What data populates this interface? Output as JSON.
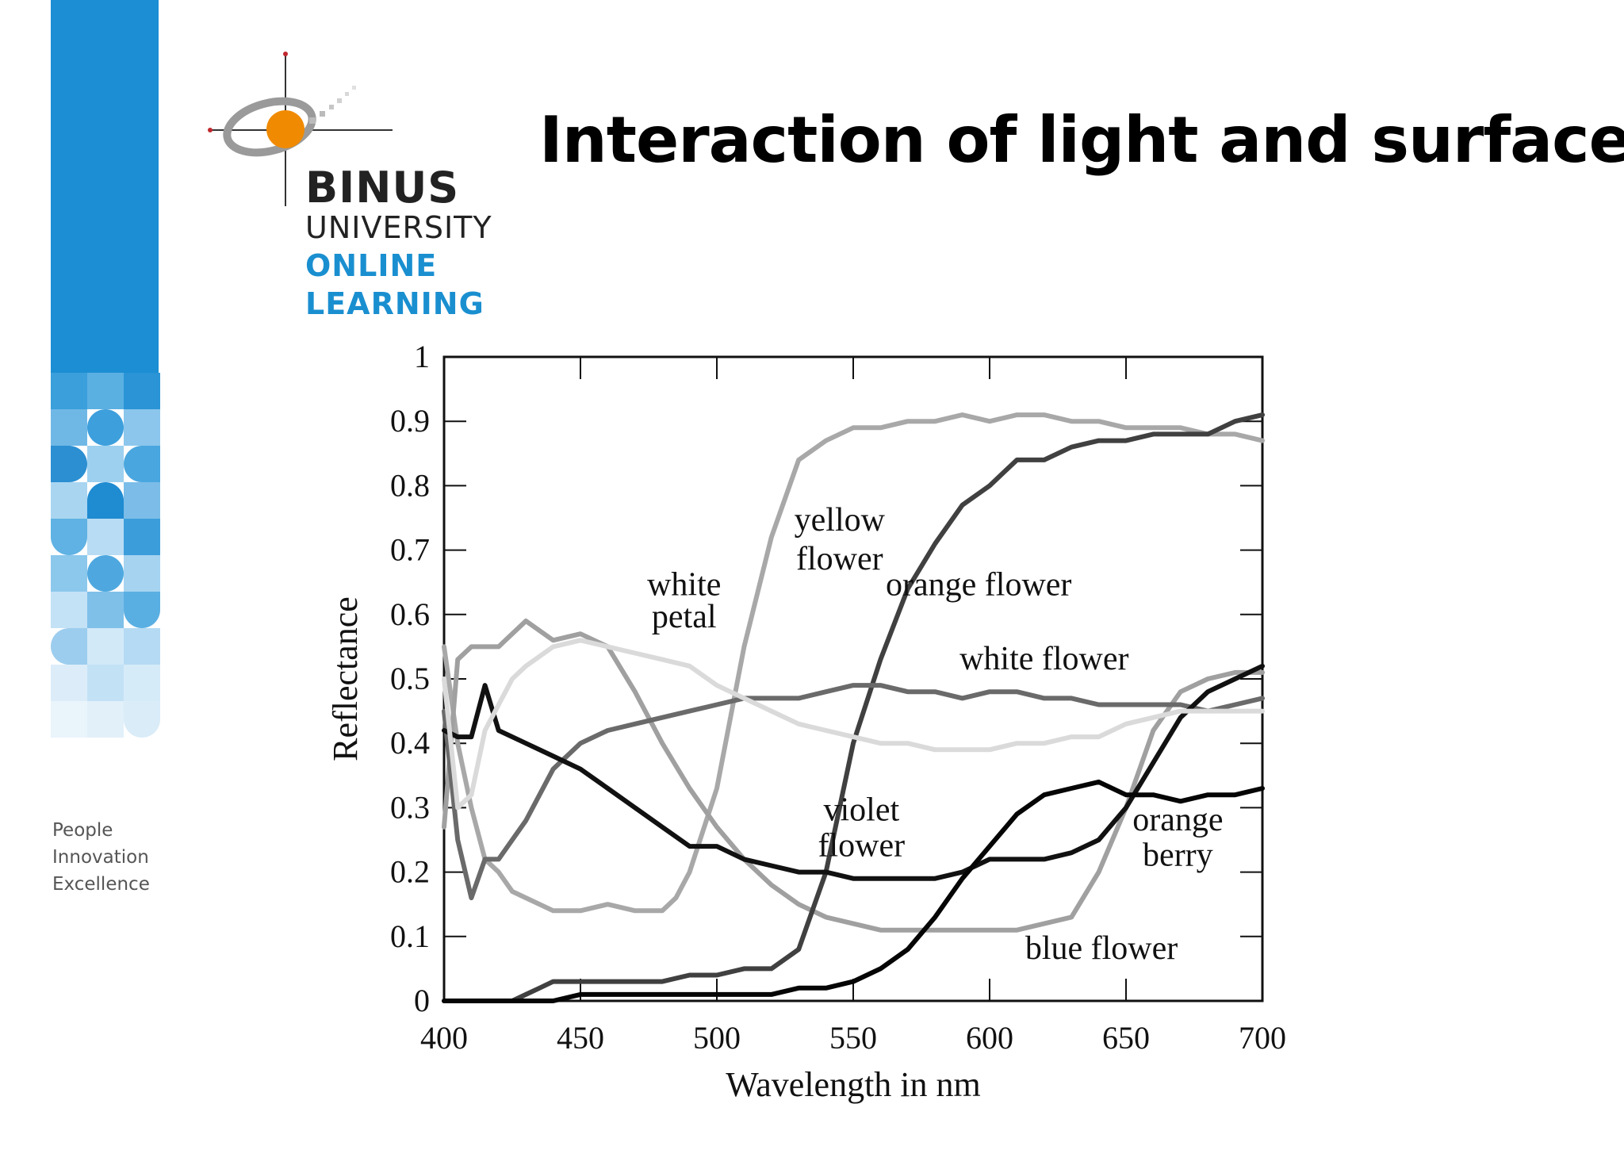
{
  "slide": {
    "title": "Interaction of light and surfaces",
    "tagline": [
      "People",
      "Innovation",
      "Excellence"
    ],
    "sidebar_color": "#1c8ed3"
  },
  "logo": {
    "line1": "BINUS",
    "line2": "UNIVERSITY",
    "line3": "ONLINE",
    "line4": "LEARNING",
    "accent_color": "#f08a00",
    "text_blue": "#1a8fd0"
  },
  "chart_data": {
    "type": "line",
    "title": "",
    "xlabel": "Wavelength in nm",
    "ylabel": "Reflectance",
    "xlim": [
      400,
      700
    ],
    "ylim": [
      0,
      1
    ],
    "xticks": [
      400,
      450,
      500,
      550,
      600,
      650,
      700
    ],
    "yticks": [
      0,
      0.1,
      0.2,
      0.3,
      0.4,
      0.5,
      0.6,
      0.7,
      0.8,
      0.9,
      1
    ],
    "ytick_labels": [
      "0",
      "0.1",
      "0.2",
      "0.3",
      "0.4",
      "0.5",
      "0.6",
      "0.7",
      "0.8",
      "0.9",
      "1"
    ],
    "grid": false,
    "series": [
      {
        "name": "yellow flower",
        "color": "#a8a8a8",
        "x": [
          400,
          405,
          410,
          415,
          420,
          425,
          430,
          440,
          450,
          460,
          470,
          480,
          485,
          490,
          500,
          510,
          520,
          530,
          540,
          550,
          560,
          570,
          580,
          590,
          600,
          610,
          620,
          630,
          640,
          650,
          660,
          670,
          680,
          690,
          700
        ],
        "y": [
          0.55,
          0.4,
          0.3,
          0.22,
          0.2,
          0.17,
          0.16,
          0.14,
          0.14,
          0.15,
          0.14,
          0.14,
          0.16,
          0.2,
          0.33,
          0.55,
          0.72,
          0.84,
          0.87,
          0.89,
          0.89,
          0.9,
          0.9,
          0.91,
          0.9,
          0.91,
          0.91,
          0.9,
          0.9,
          0.89,
          0.89,
          0.89,
          0.88,
          0.88,
          0.87
        ]
      },
      {
        "name": "white petal",
        "color": "#a0a0a0",
        "x": [
          400,
          405,
          410,
          420,
          430,
          440,
          450,
          460,
          470,
          480,
          490,
          500,
          510,
          520,
          530,
          540,
          550,
          560,
          570,
          580,
          590,
          600,
          610,
          620,
          630,
          640,
          650,
          660,
          670,
          680,
          690,
          700
        ],
        "y": [
          0.27,
          0.53,
          0.55,
          0.55,
          0.59,
          0.56,
          0.57,
          0.55,
          0.48,
          0.4,
          0.33,
          0.27,
          0.22,
          0.18,
          0.15,
          0.13,
          0.12,
          0.11,
          0.11,
          0.11,
          0.11,
          0.11,
          0.11,
          0.12,
          0.13,
          0.2,
          0.3,
          0.42,
          0.48,
          0.5,
          0.51,
          0.51
        ]
      },
      {
        "name": "orange flower",
        "color": "#404040",
        "x": [
          400,
          410,
          420,
          425,
          430,
          435,
          440,
          450,
          460,
          470,
          480,
          490,
          500,
          510,
          520,
          530,
          540,
          550,
          560,
          570,
          580,
          590,
          600,
          610,
          620,
          630,
          640,
          650,
          660,
          670,
          680,
          690,
          700
        ],
        "y": [
          0,
          0,
          0,
          0,
          0.01,
          0.02,
          0.03,
          0.03,
          0.03,
          0.03,
          0.03,
          0.04,
          0.04,
          0.05,
          0.05,
          0.08,
          0.2,
          0.4,
          0.53,
          0.64,
          0.71,
          0.77,
          0.8,
          0.84,
          0.84,
          0.86,
          0.87,
          0.87,
          0.88,
          0.88,
          0.88,
          0.9,
          0.91
        ]
      },
      {
        "name": "white flower",
        "color": "#6a6a6a",
        "x": [
          400,
          405,
          410,
          415,
          420,
          430,
          440,
          450,
          460,
          470,
          480,
          490,
          500,
          510,
          520,
          530,
          540,
          550,
          560,
          570,
          580,
          590,
          600,
          610,
          620,
          630,
          640,
          650,
          660,
          670,
          680,
          690,
          700
        ],
        "y": [
          0.45,
          0.25,
          0.16,
          0.22,
          0.22,
          0.28,
          0.36,
          0.4,
          0.42,
          0.43,
          0.44,
          0.45,
          0.46,
          0.47,
          0.47,
          0.47,
          0.48,
          0.49,
          0.49,
          0.48,
          0.48,
          0.47,
          0.48,
          0.48,
          0.47,
          0.47,
          0.46,
          0.46,
          0.46,
          0.46,
          0.45,
          0.46,
          0.47
        ]
      },
      {
        "name": "violet flower",
        "color": "#111111",
        "x": [
          400,
          405,
          410,
          415,
          420,
          430,
          440,
          450,
          460,
          470,
          480,
          490,
          500,
          510,
          520,
          530,
          540,
          550,
          560,
          570,
          580,
          590,
          600,
          610,
          620,
          630,
          640,
          650,
          660,
          670,
          680,
          690,
          700
        ],
        "y": [
          0.42,
          0.41,
          0.41,
          0.49,
          0.42,
          0.4,
          0.38,
          0.36,
          0.33,
          0.3,
          0.27,
          0.24,
          0.24,
          0.22,
          0.21,
          0.2,
          0.2,
          0.19,
          0.19,
          0.19,
          0.19,
          0.2,
          0.22,
          0.22,
          0.22,
          0.23,
          0.25,
          0.3,
          0.37,
          0.44,
          0.48,
          0.5,
          0.52
        ]
      },
      {
        "name": "blue flower",
        "color": "#dadada",
        "x": [
          400,
          405,
          410,
          415,
          420,
          425,
          430,
          440,
          450,
          460,
          470,
          480,
          490,
          500,
          510,
          520,
          530,
          540,
          550,
          560,
          570,
          580,
          590,
          600,
          610,
          620,
          630,
          640,
          650,
          660,
          670,
          680,
          690,
          700
        ],
        "y": [
          0.5,
          0.3,
          0.32,
          0.42,
          0.46,
          0.5,
          0.52,
          0.55,
          0.56,
          0.55,
          0.54,
          0.53,
          0.52,
          0.49,
          0.47,
          0.45,
          0.43,
          0.42,
          0.41,
          0.4,
          0.4,
          0.39,
          0.39,
          0.39,
          0.4,
          0.4,
          0.41,
          0.41,
          0.43,
          0.44,
          0.45,
          0.45,
          0.45,
          0.45
        ]
      },
      {
        "name": "orange berry",
        "color": "#050505",
        "x": [
          400,
          420,
          430,
          440,
          450,
          460,
          470,
          480,
          490,
          500,
          510,
          520,
          530,
          540,
          550,
          560,
          570,
          580,
          590,
          600,
          610,
          620,
          630,
          640,
          650,
          660,
          670,
          680,
          690,
          700
        ],
        "y": [
          0,
          0,
          0,
          0,
          0.01,
          0.01,
          0.01,
          0.01,
          0.01,
          0.01,
          0.01,
          0.01,
          0.02,
          0.02,
          0.03,
          0.05,
          0.08,
          0.13,
          0.19,
          0.24,
          0.29,
          0.32,
          0.33,
          0.34,
          0.32,
          0.32,
          0.31,
          0.32,
          0.32,
          0.33
        ]
      }
    ],
    "annotations": [
      {
        "text": [
          "yellow",
          "flower"
        ],
        "x": 545,
        "y": [
          0.73,
          0.67
        ]
      },
      {
        "text": [
          "white",
          "petal"
        ],
        "x": 488,
        "y": [
          0.63,
          0.58
        ]
      },
      {
        "text": [
          "orange flower"
        ],
        "x": 596,
        "y": [
          0.63
        ]
      },
      {
        "text": [
          "white flower"
        ],
        "x": 620,
        "y": [
          0.515
        ]
      },
      {
        "text": [
          "violet",
          "flower"
        ],
        "x": 553,
        "y": [
          0.28,
          0.225
        ]
      },
      {
        "text": [
          "orange",
          "berry"
        ],
        "x": 669,
        "y": [
          0.265,
          0.21
        ]
      },
      {
        "text": [
          "blue flower"
        ],
        "x": 641,
        "y": [
          0.065
        ]
      }
    ]
  }
}
